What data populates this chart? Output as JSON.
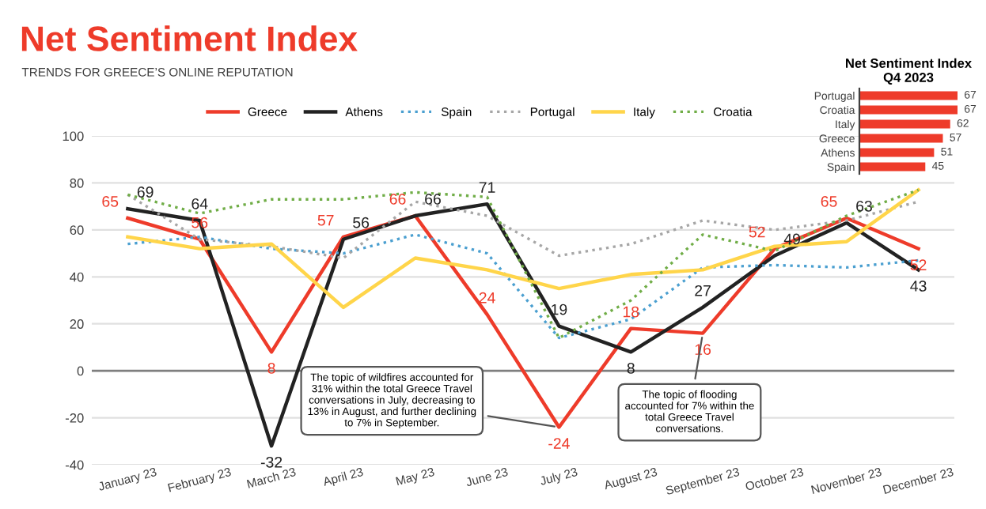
{
  "chart_data": [
    {
      "type": "line",
      "title": "Net Sentiment Index",
      "subtitle": "TRENDS FOR GREECE’S ONLINE REPUTATION",
      "categories": [
        "January 23",
        "February 23",
        "March 23",
        "April 23",
        "May 23",
        "June 23",
        "July 23",
        "August 23",
        "September 23",
        "October 23",
        "November 23",
        "December 23"
      ],
      "series": [
        {
          "name": "Greece",
          "color": "#ee3b2a",
          "line_style": "solid",
          "values": [
            65,
            56,
            8,
            57,
            66,
            24,
            -24,
            18,
            16,
            52,
            65,
            52
          ],
          "value_labels": [
            "65",
            "56",
            "8",
            "57",
            "66",
            "24",
            "-24",
            "18",
            "16",
            "52",
            "65",
            "52"
          ]
        },
        {
          "name": "Athens",
          "color": "#222222",
          "line_style": "solid",
          "values": [
            69,
            64,
            -32,
            56,
            66,
            71,
            19,
            8,
            27,
            49,
            63,
            43
          ],
          "value_labels": [
            "69",
            "64",
            "-32",
            "56",
            "66",
            "71",
            "19",
            "8",
            "27",
            "49",
            "63",
            "43"
          ]
        },
        {
          "name": "Spain",
          "color": "#4a9fd0",
          "line_style": "dotted",
          "values": [
            54,
            57,
            52,
            50,
            58,
            50,
            14,
            22,
            44,
            45,
            44,
            47
          ]
        },
        {
          "name": "Portugal",
          "color": "#a6a6a6",
          "line_style": "dotted",
          "values": [
            75,
            56,
            53,
            48,
            72,
            66,
            49,
            54,
            64,
            60,
            64,
            72
          ]
        },
        {
          "name": "Italy",
          "color": "#ffd54a",
          "line_style": "solid",
          "values": [
            57,
            52,
            54,
            27,
            48,
            43,
            35,
            41,
            43,
            53,
            55,
            77
          ]
        },
        {
          "name": "Croatia",
          "color": "#70ad47",
          "line_style": "dotted",
          "values": [
            75,
            67,
            73,
            73,
            76,
            74,
            14,
            30,
            58,
            51,
            66,
            77
          ]
        }
      ],
      "ylim": [
        -40,
        100
      ],
      "yticks": [
        -40,
        -20,
        0,
        20,
        40,
        60,
        80,
        100
      ],
      "grid": "y",
      "legend": "top",
      "marker": "none",
      "ref_lines": [
        {
          "axis": "y",
          "value": 0,
          "color": "#7f7f7f"
        }
      ],
      "annotations": [
        {
          "text": "The topic of wildfires accounted for\n31% within the total Greece Travel\nconversations in July, decreasing to\n13% in August, and further declining\nto 7% in September.",
          "x": "July 23",
          "y": -24
        },
        {
          "text": "The topic of flooding\naccounted for 7% within the\ntotal Greece Travel\nconversations.",
          "x": "September 23",
          "y": 16
        }
      ]
    },
    {
      "type": "bar",
      "orientation": "horizontal",
      "title": "Net Sentiment Index\nQ4 2023",
      "categories": [
        "Portugal",
        "Croatia",
        "Italy",
        "Greece",
        "Athens",
        "Spain"
      ],
      "values": [
        67,
        67,
        62,
        57,
        51,
        45
      ],
      "color": "#ee3b2a",
      "data_labels": true,
      "tick_labels": "y"
    }
  ]
}
